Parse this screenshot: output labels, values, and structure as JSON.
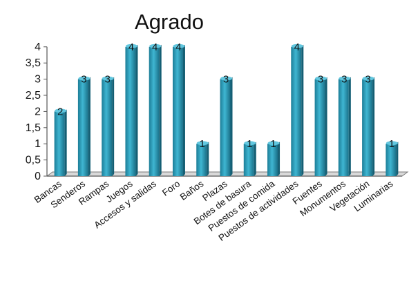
{
  "chart_data": {
    "type": "bar",
    "title": "Agrado",
    "xlabel": "",
    "ylabel": "",
    "ylim": [
      0,
      4
    ],
    "yticks": [
      "0",
      "0,5",
      "1",
      "1,5",
      "2",
      "2,5",
      "3",
      "3,5",
      "4"
    ],
    "categories": [
      "Bancas",
      "Senderos",
      "Rampas",
      "Juegos",
      "Accesos y salidas",
      "Foro",
      "Baños",
      "Plazas",
      "Botes de basura",
      "Puestos de comida",
      "Puestos de actividades",
      "Fuentes",
      "Monumentos",
      "Vegetación",
      "Luminarias"
    ],
    "values": [
      2,
      3,
      3,
      4,
      4,
      4,
      1,
      3,
      1,
      1,
      4,
      3,
      3,
      3,
      1
    ],
    "data_labels": [
      "2",
      "3",
      "3",
      "4",
      "4",
      "4",
      "1",
      "3",
      "1",
      "1",
      "4",
      "3",
      "3",
      "3",
      "1"
    ],
    "bar_color": "#2f9fbd",
    "grid": false,
    "legend": "none"
  }
}
